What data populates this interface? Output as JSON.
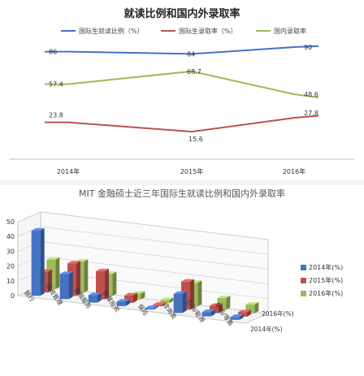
{
  "caption": "MIT 金融硕士近三年国际生就读比例和国内外录取率",
  "colors": {
    "blue": "#4472c4",
    "red": "#c0504d",
    "green": "#9bbb59"
  },
  "chart_data": [
    {
      "type": "line",
      "title": "就读比例和国内外录取率",
      "categories": [
        "2014年",
        "2015年",
        "2016年"
      ],
      "series": [
        {
          "name": "国际生就读比例（%）",
          "values": [
            86,
            84,
            90
          ],
          "labels": [
            "86",
            "84",
            "90"
          ],
          "color": "#4472c4"
        },
        {
          "name": "国际生录取率（%）",
          "values": [
            23.8,
            15.6,
            27.8
          ],
          "labels": [
            "23.8",
            "15.6",
            "27.8"
          ],
          "color": "#c0504d"
        },
        {
          "name": "国内录取率",
          "values": [
            57.4,
            68.7,
            48.6
          ],
          "labels": [
            "57.4",
            "68.7",
            "48.6"
          ],
          "color": "#9bbb59"
        }
      ],
      "legend_position": "top",
      "grid": false
    },
    {
      "type": "bar",
      "subtype": "3d-clustered",
      "categories": [
        "银行",
        "投资管理",
        "金融服务",
        "私募投资",
        "保险",
        "咨询类",
        "石油/能源",
        "制造/零售"
      ],
      "series": [
        {
          "name": "2014年(%)",
          "values": [
            44,
            17,
            5,
            3,
            1,
            13,
            3,
            2
          ],
          "color": "#4472c4"
        },
        {
          "name": "2015年(%)",
          "values": [
            14,
            22,
            19,
            5,
            1,
            19,
            5,
            3
          ],
          "color": "#c0504d"
        },
        {
          "name": "2016年(%)",
          "values": [
            20,
            21,
            15,
            4,
            2,
            16,
            8,
            6
          ],
          "color": "#9bbb59"
        }
      ],
      "depth_labels": [
        "2014年(%)",
        "2016年(%)"
      ],
      "ylim": [
        0,
        50
      ],
      "yticks": [
        "0",
        "10",
        "20",
        "30",
        "40",
        "50"
      ],
      "legend_position": "right",
      "grid": true
    }
  ]
}
